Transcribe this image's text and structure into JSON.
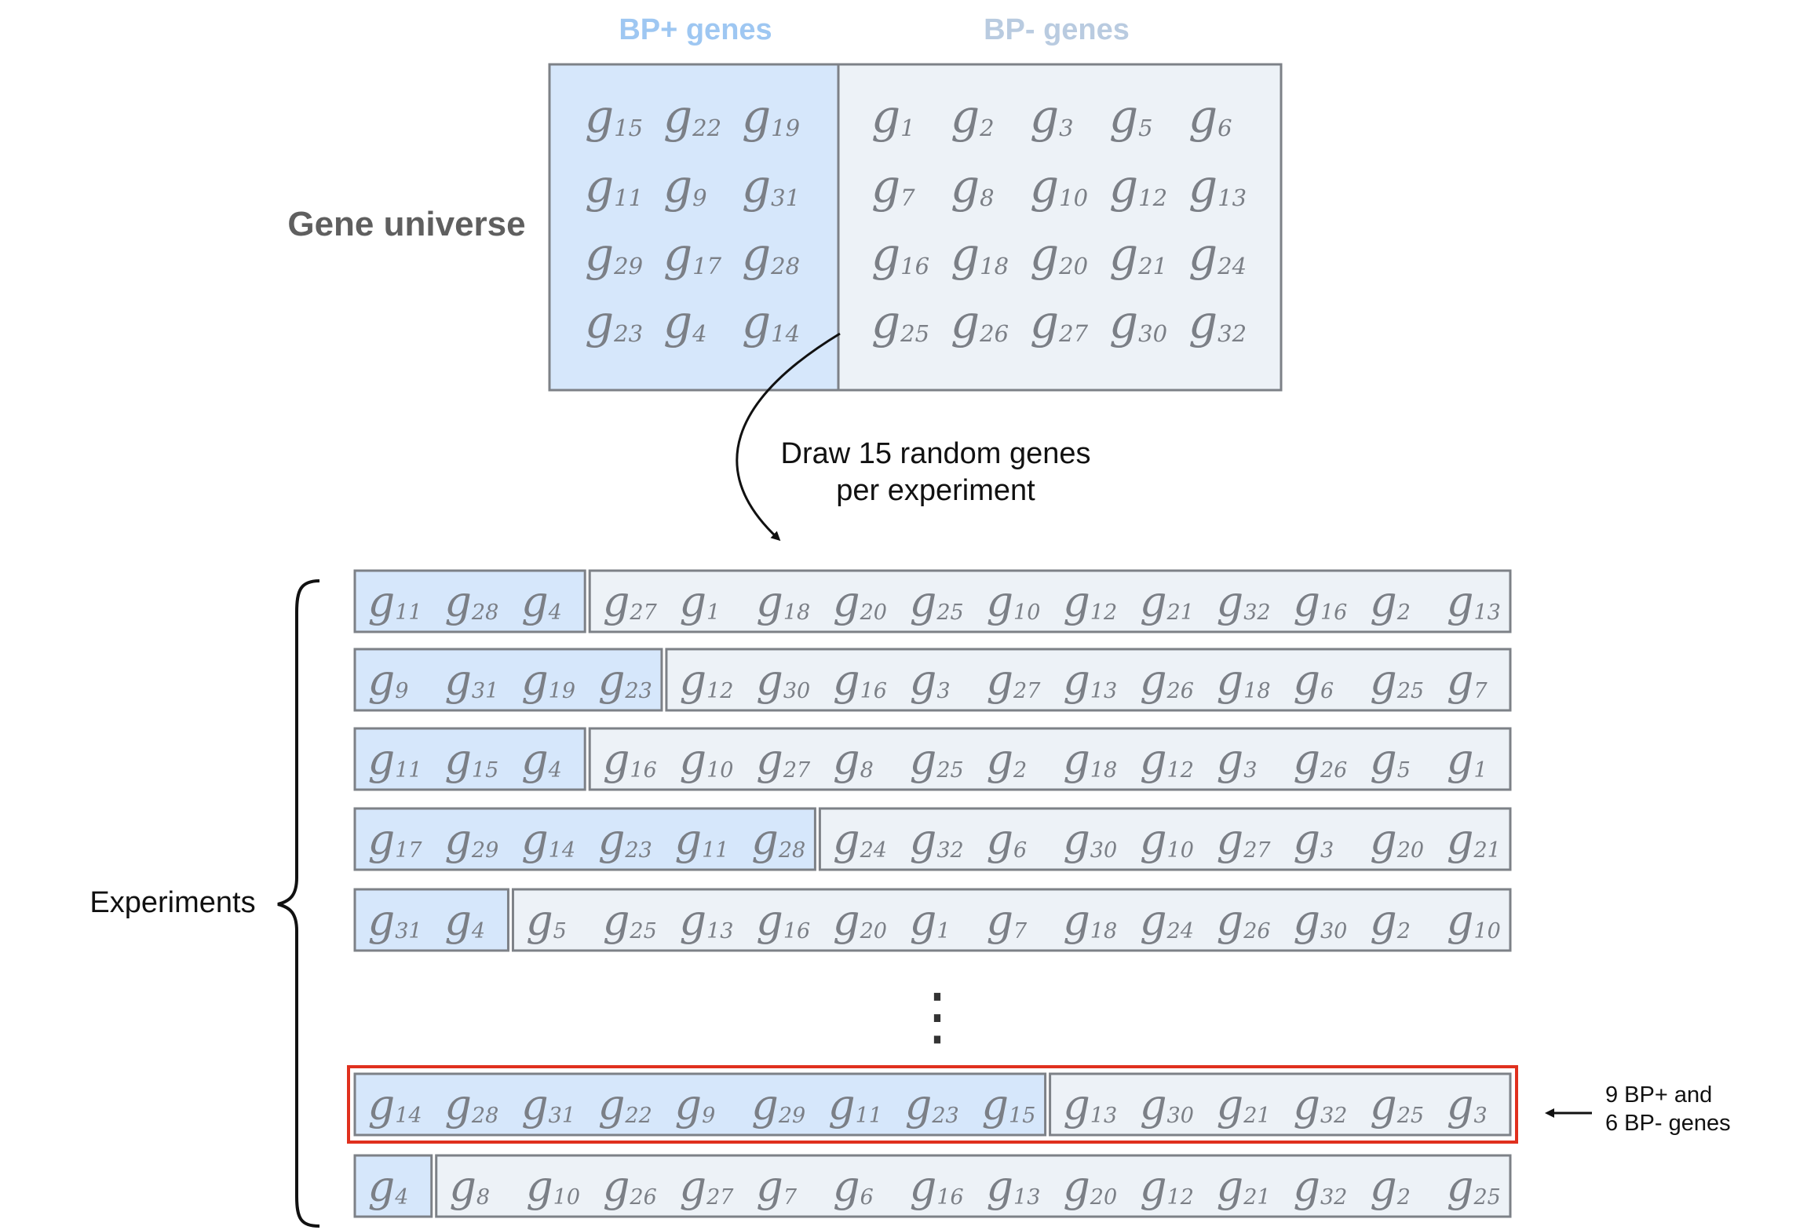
{
  "universe": {
    "label": "Gene universe",
    "bp_plus_header": "BP+ genes",
    "bp_minus_header": "BP- genes",
    "gene_letter": "g",
    "bp_plus_genes": [
      [
        "15",
        "22",
        "19"
      ],
      [
        "11",
        "9",
        "31"
      ],
      [
        "29",
        "17",
        "28"
      ],
      [
        "23",
        "4",
        "14"
      ]
    ],
    "bp_minus_genes": [
      [
        "1",
        "2",
        "3",
        "5",
        "6"
      ],
      [
        "7",
        "8",
        "10",
        "12",
        "13"
      ],
      [
        "16",
        "18",
        "20",
        "21",
        "24"
      ],
      [
        "25",
        "26",
        "27",
        "30",
        "32"
      ]
    ]
  },
  "draw_label": [
    "Draw 15 random genes",
    "per experiment"
  ],
  "experiments": {
    "label": "Experiments",
    "ellipsis": "⋮",
    "rows": [
      {
        "plus": [
          "11",
          "28",
          "4"
        ],
        "minus": [
          "27",
          "1",
          "18",
          "20",
          "25",
          "10",
          "12",
          "21",
          "32",
          "16",
          "2",
          "13"
        ]
      },
      {
        "plus": [
          "9",
          "31",
          "19",
          "23"
        ],
        "minus": [
          "12",
          "30",
          "16",
          "3",
          "27",
          "13",
          "26",
          "18",
          "6",
          "25",
          "7"
        ]
      },
      {
        "plus": [
          "11",
          "15",
          "4"
        ],
        "minus": [
          "16",
          "10",
          "27",
          "8",
          "25",
          "2",
          "18",
          "12",
          "3",
          "26",
          "5",
          "1"
        ]
      },
      {
        "plus": [
          "17",
          "29",
          "14",
          "23",
          "11",
          "28"
        ],
        "minus": [
          "24",
          "32",
          "6",
          "30",
          "10",
          "27",
          "3",
          "20",
          "21"
        ]
      },
      {
        "plus": [
          "31",
          "4"
        ],
        "minus": [
          "5",
          "25",
          "13",
          "16",
          "20",
          "1",
          "7",
          "18",
          "24",
          "26",
          "30",
          "2",
          "10"
        ]
      },
      {
        "plus": [
          "14",
          "28",
          "31",
          "22",
          "9",
          "29",
          "11",
          "23",
          "15"
        ],
        "minus": [
          "13",
          "30",
          "21",
          "32",
          "25",
          "3"
        ],
        "highlighted": true
      },
      {
        "plus": [
          "4"
        ],
        "minus": [
          "8",
          "10",
          "26",
          "27",
          "7",
          "6",
          "16",
          "13",
          "20",
          "12",
          "21",
          "32",
          "2",
          "25"
        ]
      }
    ]
  },
  "annotation": [
    "9 BP+ and",
    "6 BP- genes"
  ],
  "colors": {
    "bp_plus_fill": "#d6e7fb",
    "bp_minus_fill": "#edf2f7",
    "box_stroke": "#7d8187",
    "bp_plus_header": "#9ec7f2",
    "bp_minus_header": "#b9cbe0",
    "highlight": "#e0301e",
    "gene_text": "#7b7f86"
  }
}
